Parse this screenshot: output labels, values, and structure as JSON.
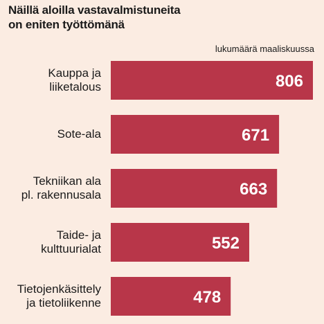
{
  "title_lines": [
    "Näillä aloilla vastavalmistuneita",
    "on eniten työttömänä"
  ],
  "unit_label": "lukumäärä maaliskuussa",
  "colors": {
    "background": "#fbece2",
    "bar": "#b83649",
    "value_text": "#ffffff",
    "label_text": "#1a1a1a"
  },
  "chart_data": {
    "type": "bar",
    "orientation": "horizontal",
    "title": "Näillä aloilla vastavalmistuneita on eniten työttömänä",
    "unit": "lukumäärä maaliskuussa",
    "categories": [
      [
        "Kauppa ja",
        "liiketalous"
      ],
      [
        "Sote-ala"
      ],
      [
        "Tekniikan ala",
        "pl. rakennusala"
      ],
      [
        "Taide- ja",
        "kulttuurialat"
      ],
      [
        "Tietojenkäsittely",
        "ja tietoliikenne"
      ]
    ],
    "values": [
      806,
      671,
      663,
      552,
      478
    ],
    "value_labels": [
      "806",
      "671",
      "663",
      "552",
      "478"
    ],
    "xlim": [
      0,
      806
    ]
  }
}
